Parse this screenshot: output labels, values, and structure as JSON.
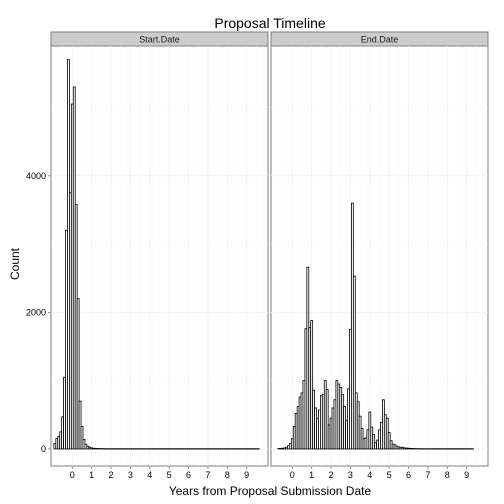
{
  "chart_data": {
    "type": "bar",
    "title": "Proposal Timeline",
    "xlabel": "Years from Proposal Submission Date",
    "ylabel": "Count",
    "xlim": [
      -1.1,
      10.1
    ],
    "ylim": [
      -250,
      5900
    ],
    "bin_width": 0.1,
    "x_breaks": [
      0,
      1,
      2,
      3,
      4,
      5,
      6,
      7,
      8,
      9
    ],
    "y_breaks": [
      0,
      2000,
      4000
    ],
    "grid": true,
    "panels": [
      {
        "label": "Start.Date",
        "x_start": -0.95,
        "values": [
          80,
          150,
          180,
          250,
          470,
          1050,
          3200,
          5700,
          3750,
          5050,
          5300,
          3580,
          2200,
          700,
          330,
          140,
          70,
          40,
          25,
          15,
          10,
          8,
          6,
          5,
          4,
          4,
          3,
          3,
          3,
          3,
          3,
          3,
          3,
          3,
          3,
          3,
          3,
          3,
          3,
          3,
          3,
          3,
          3,
          3,
          3,
          3,
          3,
          3,
          3,
          3,
          3,
          3,
          3,
          3,
          3,
          3,
          3,
          3,
          3,
          3,
          3,
          3,
          3,
          3,
          3,
          3,
          3,
          3,
          3,
          3,
          3,
          3,
          3,
          3,
          3,
          3,
          3,
          3,
          3,
          3,
          3,
          3,
          3,
          3,
          3,
          3,
          3,
          3,
          3,
          3,
          3,
          3,
          3,
          3,
          3,
          3,
          3,
          3,
          3,
          3,
          3,
          3,
          3,
          3,
          3,
          3
        ]
      },
      {
        "label": "End.Date",
        "x_start": -0.75,
        "values": [
          5,
          8,
          10,
          15,
          25,
          45,
          80,
          150,
          330,
          520,
          620,
          760,
          820,
          1000,
          1760,
          2660,
          1780,
          1880,
          860,
          600,
          450,
          570,
          780,
          800,
          1000,
          870,
          350,
          450,
          600,
          720,
          1000,
          950,
          900,
          800,
          620,
          420,
          880,
          1750,
          3600,
          2530,
          820,
          690,
          480,
          300,
          150,
          160,
          280,
          540,
          320,
          210,
          90,
          130,
          280,
          390,
          720,
          500,
          450,
          240,
          120,
          70,
          60,
          40,
          30,
          25,
          20,
          15,
          12,
          10,
          8,
          6,
          5,
          4,
          4,
          3,
          3,
          3,
          3,
          3,
          3,
          3,
          3,
          3,
          3,
          3,
          3,
          3,
          3,
          3,
          3,
          3,
          3,
          3,
          3,
          3,
          3,
          3,
          3,
          3,
          3,
          3,
          3
        ]
      }
    ]
  }
}
